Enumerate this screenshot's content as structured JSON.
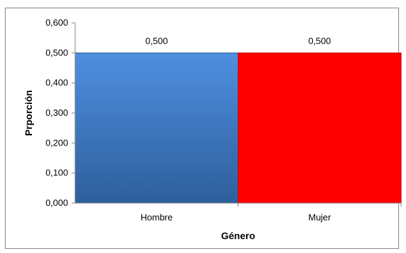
{
  "chart_data": {
    "type": "bar",
    "title": "",
    "xlabel": "Género",
    "ylabel": "Prporción",
    "categories": [
      "Hombre",
      "Mujer"
    ],
    "values": [
      0.5,
      0.5
    ],
    "data_labels": [
      "0,500",
      "0,500"
    ],
    "ylim": [
      0,
      0.6
    ],
    "yticks": [
      0,
      0.1,
      0.2,
      0.3,
      0.4,
      0.5,
      0.6
    ],
    "ytick_labels": [
      "0,000",
      "0,100",
      "0,200",
      "0,300",
      "0,400",
      "0,500",
      "0,600"
    ],
    "grid": false,
    "legend": "none",
    "bar_colors": [
      "#4a7ebb",
      "#ff0000"
    ]
  }
}
